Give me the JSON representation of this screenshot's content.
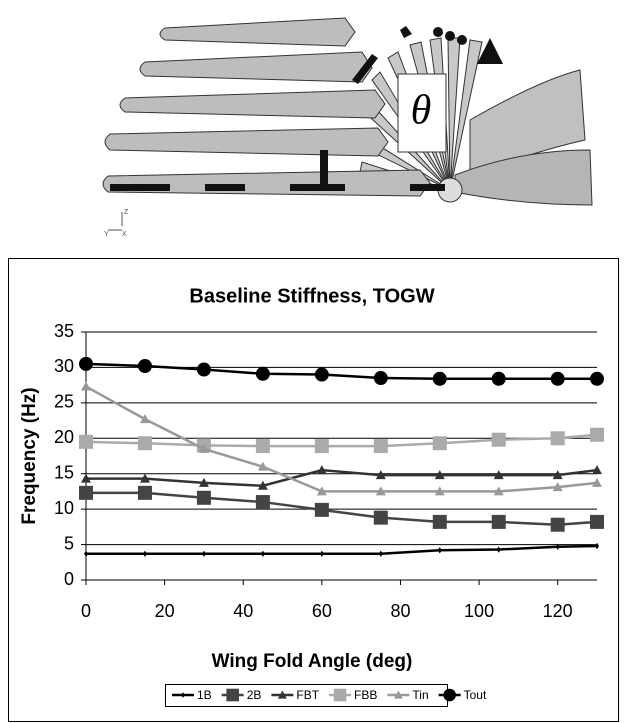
{
  "diagram": {
    "symbol": "θ",
    "axis_labels": [
      "Z",
      "Y",
      "X"
    ]
  },
  "chart_data": {
    "type": "line",
    "title": "Baseline Stiffness, TOGW",
    "x_label": "Wing Fold Angle (deg)",
    "y_label": "Frequency (Hz)",
    "x": [
      0,
      15,
      30,
      45,
      60,
      75,
      90,
      105,
      120,
      130
    ],
    "xlim": [
      0,
      130
    ],
    "xticks": [
      0,
      20,
      40,
      60,
      80,
      100,
      120
    ],
    "ylim": [
      0,
      35
    ],
    "yticks": [
      0,
      5,
      10,
      15,
      20,
      25,
      30,
      35
    ],
    "grid": true,
    "legend": "bottom",
    "series": [
      {
        "name": "1B",
        "color": "#000000",
        "marker": "diamond",
        "values": [
          3.7,
          3.7,
          3.7,
          3.7,
          3.7,
          3.7,
          4.2,
          4.3,
          4.7,
          4.8
        ]
      },
      {
        "name": "2B",
        "color": "#444444",
        "marker": "square",
        "values": [
          12.3,
          12.3,
          11.6,
          11,
          9.9,
          8.8,
          8.2,
          8.2,
          7.8,
          8.2
        ]
      },
      {
        "name": "FBT",
        "color": "#333333",
        "marker": "triangle",
        "values": [
          14.3,
          14.3,
          13.7,
          13.3,
          15.5,
          14.8,
          14.8,
          14.8,
          14.8,
          15.5
        ]
      },
      {
        "name": "FBB",
        "color": "#aaaaaa",
        "marker": "square",
        "values": [
          19.5,
          19.3,
          19,
          18.9,
          18.9,
          18.9,
          19.3,
          19.8,
          20,
          20.5
        ]
      },
      {
        "name": "Tin",
        "color": "#999999",
        "marker": "triangle",
        "values": [
          27.3,
          22.7,
          18.5,
          16,
          12.5,
          12.5,
          12.5,
          12.5,
          13.1,
          13.7
        ]
      },
      {
        "name": "Tout",
        "color": "#000000",
        "marker": "circle",
        "values": [
          30.5,
          30.2,
          29.7,
          29.1,
          29,
          28.5,
          28.4,
          28.4,
          28.4,
          28.4
        ]
      }
    ]
  }
}
